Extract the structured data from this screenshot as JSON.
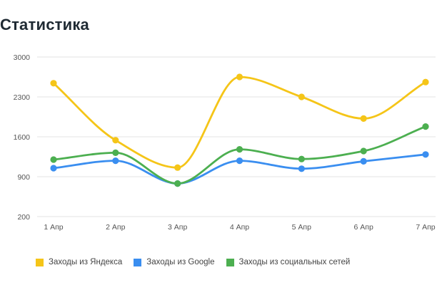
{
  "page": {
    "title": "Статистика"
  },
  "chart_data": {
    "type": "line",
    "title": "Статистика",
    "categories": [
      "1 Апр",
      "2 Апр",
      "3 Апр",
      "4 Апр",
      "5 Апр",
      "6 Апр",
      "7 Апр"
    ],
    "yticks": [
      "200",
      "900",
      "1600",
      "2300",
      "3000"
    ],
    "ylim": [
      200,
      3000
    ],
    "grid": true,
    "legend_position": "bottom-left",
    "series": [
      {
        "name": "Заходы из Яндекса",
        "color": "#f5c518",
        "values": [
          2540,
          1540,
          1060,
          2650,
          2300,
          1920,
          2560
        ]
      },
      {
        "name": "Заходы из Google",
        "color": "#3a8ef0",
        "values": [
          1050,
          1180,
          780,
          1180,
          1040,
          1170,
          1290
        ]
      },
      {
        "name": "Заходы из социальных сетей",
        "color": "#4caf50",
        "values": [
          1200,
          1320,
          780,
          1380,
          1210,
          1350,
          1780
        ]
      }
    ]
  }
}
